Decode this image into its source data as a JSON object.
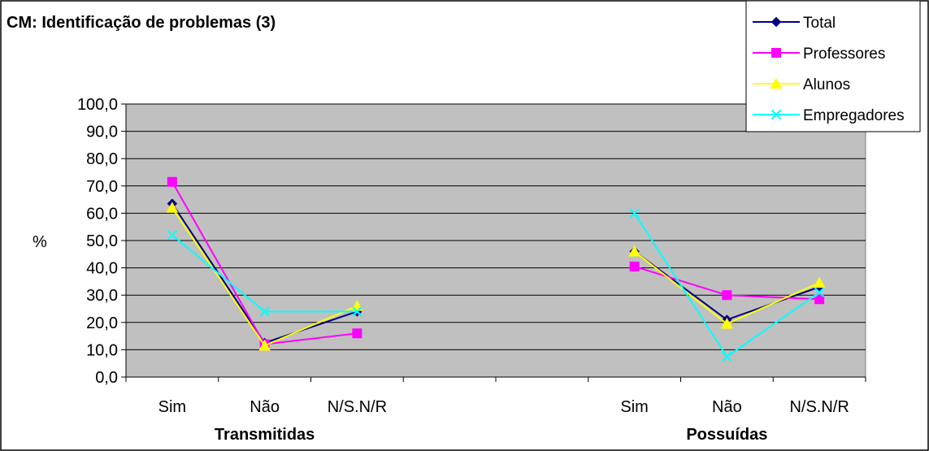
{
  "chart_data": {
    "type": "line",
    "title": "CM: Identificação de problemas  (3)",
    "ylabel": "%",
    "ylim": [
      0,
      100
    ],
    "y_ticks": [
      "0,0",
      "10,0",
      "20,0",
      "30,0",
      "40,0",
      "50,0",
      "60,0",
      "70,0",
      "80,0",
      "90,0",
      "100,0"
    ],
    "grid": true,
    "legend_position": "top-right",
    "groups": [
      {
        "label": "Transmitidas",
        "categories": [
          "Sim",
          "Não",
          "N/S.N/R"
        ]
      },
      {
        "label": "Possuídas",
        "categories": [
          "Sim",
          "Não",
          "N/S.N/R"
        ]
      }
    ],
    "categories": [
      "Sim",
      "Não",
      "N/S.N/R",
      "",
      "",
      "Sim",
      "Não",
      "N/S.N/R"
    ],
    "series": [
      {
        "name": "Total",
        "color": "#000080",
        "marker": "diamond",
        "values": [
          63.5,
          12.5,
          24.0,
          null,
          null,
          46.0,
          21.0,
          33.0
        ]
      },
      {
        "name": "Professores",
        "color": "#ff00ff",
        "marker": "square",
        "values": [
          71.5,
          12.0,
          16.0,
          null,
          null,
          40.5,
          30.0,
          28.5
        ]
      },
      {
        "name": "Alunos",
        "color": "#ffff00",
        "marker": "triangle",
        "values": [
          62.0,
          11.5,
          26.0,
          null,
          null,
          46.0,
          19.5,
          34.5
        ]
      },
      {
        "name": "Empregadores",
        "color": "#00ffff",
        "marker": "x",
        "values": [
          52.0,
          24.0,
          24.0,
          null,
          null,
          60.0,
          7.5,
          31.0
        ]
      }
    ]
  }
}
